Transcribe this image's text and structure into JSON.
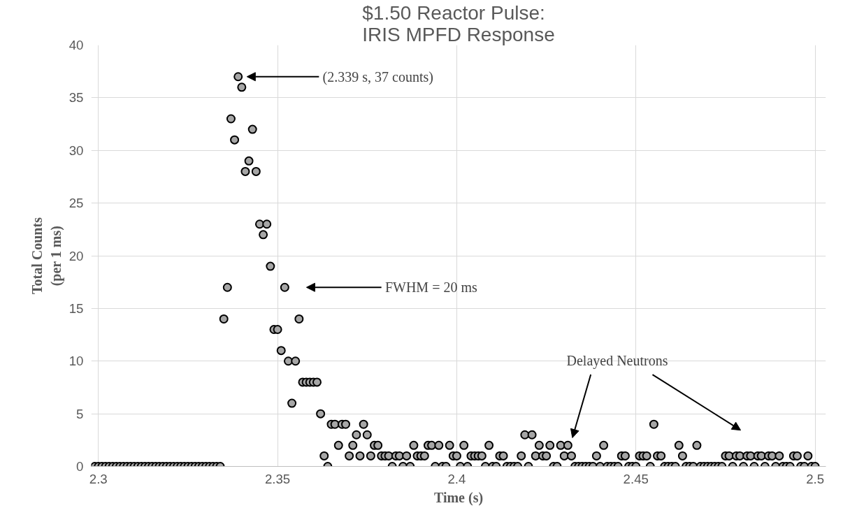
{
  "chart_data": {
    "type": "scatter",
    "title": "$1.50 Reactor Pulse:\nIRIS MPFD Response",
    "xlabel": "Time (s)",
    "ylabel": "Total Counts\n(per 1 ms)",
    "x": [
      2.299,
      2.3,
      2.301,
      2.302,
      2.303,
      2.304,
      2.305,
      2.306,
      2.307,
      2.308,
      2.309,
      2.31,
      2.311,
      2.312,
      2.313,
      2.314,
      2.315,
      2.316,
      2.317,
      2.318,
      2.319,
      2.32,
      2.321,
      2.322,
      2.323,
      2.324,
      2.325,
      2.326,
      2.327,
      2.328,
      2.329,
      2.33,
      2.331,
      2.332,
      2.333,
      2.334,
      2.335,
      2.336,
      2.337,
      2.338,
      2.339,
      2.34,
      2.341,
      2.342,
      2.343,
      2.344,
      2.345,
      2.346,
      2.347,
      2.348,
      2.349,
      2.35,
      2.351,
      2.352,
      2.353,
      2.354,
      2.355,
      2.356,
      2.357,
      2.358,
      2.359,
      2.36,
      2.361,
      2.362,
      2.363,
      2.364,
      2.365,
      2.366,
      2.367,
      2.368,
      2.369,
      2.37,
      2.371,
      2.372,
      2.373,
      2.374,
      2.375,
      2.376,
      2.377,
      2.378,
      2.379,
      2.38,
      2.381,
      2.382,
      2.383,
      2.384,
      2.385,
      2.386,
      2.387,
      2.388,
      2.389,
      2.39,
      2.391,
      2.392,
      2.393,
      2.394,
      2.395,
      2.396,
      2.397,
      2.398,
      2.399,
      2.4,
      2.401,
      2.402,
      2.403,
      2.404,
      2.405,
      2.406,
      2.407,
      2.408,
      2.409,
      2.41,
      2.411,
      2.412,
      2.413,
      2.414,
      2.415,
      2.416,
      2.417,
      2.418,
      2.419,
      2.42,
      2.421,
      2.422,
      2.423,
      2.424,
      2.425,
      2.426,
      2.427,
      2.428,
      2.429,
      2.43,
      2.431,
      2.432,
      2.433,
      2.434,
      2.435,
      2.436,
      2.437,
      2.438,
      2.439,
      2.44,
      2.441,
      2.442,
      2.443,
      2.444,
      2.445,
      2.446,
      2.447,
      2.448,
      2.449,
      2.45,
      2.451,
      2.452,
      2.453,
      2.454,
      2.455,
      2.456,
      2.457,
      2.458,
      2.459,
      2.46,
      2.461,
      2.462,
      2.463,
      2.464,
      2.465,
      2.466,
      2.467,
      2.468,
      2.469,
      2.47,
      2.471,
      2.472,
      2.473,
      2.474,
      2.475,
      2.476,
      2.477,
      2.478,
      2.479,
      2.48,
      2.481,
      2.482,
      2.483,
      2.484,
      2.485,
      2.486,
      2.487,
      2.488,
      2.489,
      2.49,
      2.491,
      2.492,
      2.493,
      2.494,
      2.495,
      2.496,
      2.497,
      2.498,
      2.499,
      2.5
    ],
    "values": [
      0,
      0,
      0,
      0,
      0,
      0,
      0,
      0,
      0,
      0,
      0,
      0,
      0,
      0,
      0,
      0,
      0,
      0,
      0,
      0,
      0,
      0,
      0,
      0,
      0,
      0,
      0,
      0,
      0,
      0,
      0,
      0,
      0,
      0,
      0,
      0,
      14,
      17,
      33,
      31,
      37,
      36,
      28,
      29,
      32,
      28,
      23,
      22,
      23,
      19,
      13,
      13,
      11,
      17,
      10,
      6,
      10,
      14,
      8,
      8,
      8,
      8,
      8,
      5,
      1,
      0,
      4,
      4,
      2,
      4,
      4,
      1,
      2,
      3,
      1,
      4,
      3,
      1,
      2,
      2,
      1,
      1,
      1,
      0,
      1,
      1,
      0,
      1,
      0,
      2,
      1,
      1,
      1,
      2,
      2,
      0,
      2,
      0,
      0,
      2,
      1,
      1,
      0,
      2,
      0,
      1,
      1,
      1,
      1,
      0,
      2,
      0,
      0,
      1,
      1,
      0,
      0,
      0,
      0,
      1,
      3,
      0,
      3,
      1,
      2,
      1,
      1,
      2,
      0,
      0,
      2,
      1,
      2,
      1,
      0,
      0,
      0,
      0,
      0,
      0,
      1,
      0,
      2,
      0,
      0,
      0,
      0,
      1,
      1,
      0,
      0,
      0,
      1,
      1,
      1,
      0,
      4,
      1,
      1,
      0,
      0,
      0,
      0,
      2,
      1,
      0,
      0,
      0,
      2,
      0,
      0,
      0,
      0,
      0,
      0,
      0,
      1,
      1,
      0,
      1,
      1,
      0,
      1,
      1,
      0,
      1,
      1,
      0,
      1,
      1,
      0,
      1,
      0,
      0,
      0,
      1,
      1,
      0,
      0,
      1,
      0,
      0
    ],
    "color": "#a6a6a6",
    "marker": "circle",
    "xlim": [
      2.298,
      2.503
    ],
    "ylim": [
      0,
      40
    ],
    "xticks": [
      2.3,
      2.35,
      2.4,
      2.45,
      2.5
    ],
    "yticks": [
      0,
      5,
      10,
      15,
      20,
      25,
      30,
      35,
      40
    ],
    "grid": true,
    "annotations": [
      "(2.339 s, 37 counts)",
      "FWHM = 20 ms",
      "Delayed Neutrons"
    ]
  }
}
